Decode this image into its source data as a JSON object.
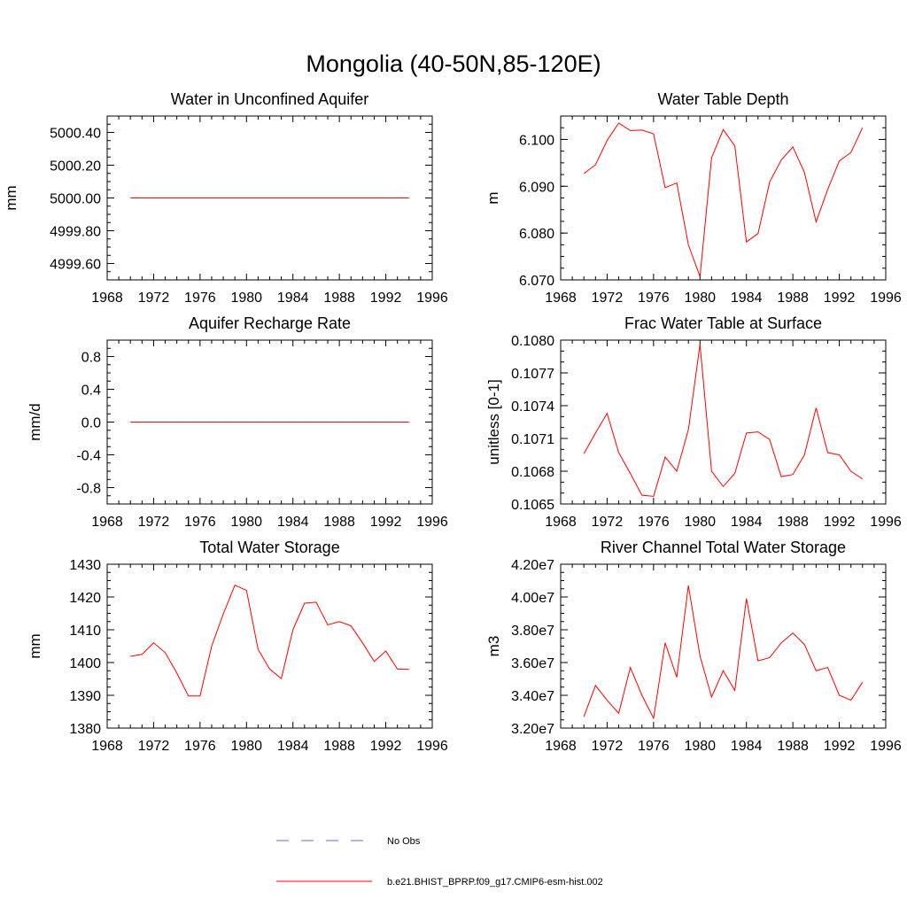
{
  "figure": {
    "title": "Mongolia (40-50N,85-120E)",
    "series_color": "#ff0000",
    "obs_color": "#6a6ad0",
    "legend": [
      {
        "label": "No Obs",
        "style": "dashed",
        "color": "#6a6ad0"
      },
      {
        "label": "b.e21.BHIST_BPRP.f09_g17.CMIP6-esm-hist.002",
        "style": "solid",
        "color": "#ff0000"
      }
    ]
  },
  "chart_data": [
    {
      "type": "line",
      "title": "Water in Unconfined Aquifer",
      "xlabel": "",
      "ylabel": "mm",
      "xlim": [
        1968,
        1996
      ],
      "xticks": [
        1968,
        1972,
        1976,
        1980,
        1984,
        1988,
        1992,
        1996
      ],
      "ylim": [
        4999.5,
        5000.5
      ],
      "yticks": [
        4999.6,
        4999.8,
        5000.0,
        5000.2,
        5000.4
      ],
      "ytick_labels": [
        "4999.60",
        "4999.80",
        "5000.00",
        "5000.20",
        "5000.40"
      ],
      "yminor": 0.05,
      "x": [
        1970,
        1971,
        1972,
        1973,
        1974,
        1975,
        1976,
        1977,
        1978,
        1979,
        1980,
        1981,
        1982,
        1983,
        1984,
        1985,
        1986,
        1987,
        1988,
        1989,
        1990,
        1991,
        1992,
        1993,
        1994
      ],
      "series": [
        {
          "name": "b.e21.BHIST_BPRP.f09_g17.CMIP6-esm-hist.002",
          "values": [
            5000,
            5000,
            5000,
            5000,
            5000,
            5000,
            5000,
            5000,
            5000,
            5000,
            5000,
            5000,
            5000,
            5000,
            5000,
            5000,
            5000,
            5000,
            5000,
            5000,
            5000,
            5000,
            5000,
            5000,
            5000
          ]
        }
      ]
    },
    {
      "type": "line",
      "title": "Water Table Depth",
      "xlabel": "",
      "ylabel": "m",
      "xlim": [
        1968,
        1996
      ],
      "xticks": [
        1968,
        1972,
        1976,
        1980,
        1984,
        1988,
        1992,
        1996
      ],
      "ylim": [
        6.07,
        6.105
      ],
      "yticks": [
        6.07,
        6.08,
        6.09,
        6.1
      ],
      "ytick_labels": [
        "6.070",
        "6.080",
        "6.090",
        "6.100"
      ],
      "yminor": 0.0025,
      "x": [
        1970,
        1971,
        1972,
        1973,
        1974,
        1975,
        1976,
        1977,
        1978,
        1979,
        1980,
        1981,
        1982,
        1983,
        1984,
        1985,
        1986,
        1987,
        1988,
        1989,
        1990,
        1991,
        1992,
        1993,
        1994
      ],
      "series": [
        {
          "name": "b.e21.BHIST_BPRP.f09_g17.CMIP6-esm-hist.002",
          "values": [
            6.0927,
            6.0946,
            6.0998,
            6.1035,
            6.1019,
            6.102,
            6.1012,
            6.0897,
            6.0907,
            6.0775,
            6.0707,
            6.0961,
            6.1021,
            6.0986,
            6.0781,
            6.0799,
            6.0909,
            6.0956,
            6.0984,
            6.0929,
            6.0824,
            6.0893,
            6.0954,
            6.0972,
            6.1025
          ]
        }
      ]
    },
    {
      "type": "line",
      "title": "Aquifer Recharge Rate",
      "xlabel": "",
      "ylabel": "mm/d",
      "xlim": [
        1968,
        1996
      ],
      "xticks": [
        1968,
        1972,
        1976,
        1980,
        1984,
        1988,
        1992,
        1996
      ],
      "ylim": [
        -1.0,
        1.0
      ],
      "yticks": [
        -0.8,
        -0.4,
        0.0,
        0.4,
        0.8
      ],
      "ytick_labels": [
        "-0.8",
        "-0.4",
        "0.0",
        "0.4",
        "0.8"
      ],
      "yminor": 0.1,
      "x": [
        1970,
        1971,
        1972,
        1973,
        1974,
        1975,
        1976,
        1977,
        1978,
        1979,
        1980,
        1981,
        1982,
        1983,
        1984,
        1985,
        1986,
        1987,
        1988,
        1989,
        1990,
        1991,
        1992,
        1993,
        1994
      ],
      "series": [
        {
          "name": "b.e21.BHIST_BPRP.f09_g17.CMIP6-esm-hist.002",
          "values": [
            0,
            0,
            0,
            0,
            0,
            0,
            0,
            0,
            0,
            0,
            0,
            0,
            0,
            0,
            0,
            0,
            0,
            0,
            0,
            0,
            0,
            0,
            0,
            0,
            0
          ]
        }
      ]
    },
    {
      "type": "line",
      "title": "Frac Water Table at Surface",
      "xlabel": "",
      "ylabel": "unitless [0-1]",
      "xlim": [
        1968,
        1996
      ],
      "xticks": [
        1968,
        1972,
        1976,
        1980,
        1984,
        1988,
        1992,
        1996
      ],
      "ylim": [
        0.1065,
        0.108
      ],
      "yticks": [
        0.1065,
        0.1068,
        0.1071,
        0.1074,
        0.1077,
        0.108
      ],
      "ytick_labels": [
        "0.1065",
        "0.1068",
        "0.1071",
        "0.1074",
        "0.1077",
        "0.1080"
      ],
      "yminor": 0.0001,
      "x": [
        1970,
        1971,
        1972,
        1973,
        1974,
        1975,
        1976,
        1977,
        1978,
        1979,
        1980,
        1981,
        1982,
        1983,
        1984,
        1985,
        1986,
        1987,
        1988,
        1989,
        1990,
        1991,
        1992,
        1993,
        1994
      ],
      "series": [
        {
          "name": "b.e21.BHIST_BPRP.f09_g17.CMIP6-esm-hist.002",
          "values": [
            0.10696,
            0.10715,
            0.10733,
            0.10697,
            0.10678,
            0.10658,
            0.10657,
            0.10693,
            0.1068,
            0.10718,
            0.10796,
            0.1068,
            0.10666,
            0.10678,
            0.10715,
            0.10716,
            0.10709,
            0.10675,
            0.10677,
            0.10695,
            0.10738,
            0.10697,
            0.10695,
            0.1068,
            0.10673
          ]
        }
      ]
    },
    {
      "type": "line",
      "title": "Total Water Storage",
      "xlabel": "",
      "ylabel": "mm",
      "xlim": [
        1968,
        1996
      ],
      "xticks": [
        1968,
        1972,
        1976,
        1980,
        1984,
        1988,
        1992,
        1996
      ],
      "ylim": [
        1380,
        1430
      ],
      "yticks": [
        1380,
        1390,
        1400,
        1410,
        1420,
        1430
      ],
      "ytick_labels": [
        "1380",
        "1390",
        "1400",
        "1410",
        "1420",
        "1430"
      ],
      "yminor": 2.5,
      "x": [
        1970,
        1971,
        1972,
        1973,
        1974,
        1975,
        1976,
        1977,
        1978,
        1979,
        1980,
        1981,
        1982,
        1983,
        1984,
        1985,
        1986,
        1987,
        1988,
        1989,
        1990,
        1991,
        1992,
        1993,
        1994
      ],
      "series": [
        {
          "name": "b.e21.BHIST_BPRP.f09_g17.CMIP6-esm-hist.002",
          "values": [
            1401.9,
            1402.5,
            1406.0,
            1403.0,
            1396.8,
            1389.8,
            1389.8,
            1405.0,
            1414.8,
            1423.6,
            1422.0,
            1404.0,
            1398.0,
            1395.1,
            1410.0,
            1418.1,
            1418.4,
            1411.5,
            1412.5,
            1411.2,
            1406.0,
            1400.3,
            1403.5,
            1398.0,
            1397.9
          ]
        }
      ]
    },
    {
      "type": "line",
      "title": "River Channel Total Water Storage",
      "xlabel": "",
      "ylabel": "m3",
      "xlim": [
        1968,
        1996
      ],
      "xticks": [
        1968,
        1972,
        1976,
        1980,
        1984,
        1988,
        1992,
        1996
      ],
      "ylim": [
        32000000,
        42000000
      ],
      "yticks": [
        32000000,
        34000000,
        36000000,
        38000000,
        40000000,
        42000000
      ],
      "ytick_labels": [
        "3.20e7",
        "3.40e7",
        "3.60e7",
        "3.80e7",
        "4.00e7",
        "4.20e7"
      ],
      "yminor": 500000,
      "x": [
        1970,
        1971,
        1972,
        1973,
        1974,
        1975,
        1976,
        1977,
        1978,
        1979,
        1980,
        1981,
        1982,
        1983,
        1984,
        1985,
        1986,
        1987,
        1988,
        1989,
        1990,
        1991,
        1992,
        1993,
        1994
      ],
      "series": [
        {
          "name": "b.e21.BHIST_BPRP.f09_g17.CMIP6-esm-hist.002",
          "values": [
            32700000,
            34600000,
            33700000,
            32900000,
            35700000,
            34000000,
            32600000,
            37200000,
            35100000,
            40700000,
            36400000,
            33900000,
            35500000,
            34300000,
            39900000,
            36100000,
            36300000,
            37200000,
            37800000,
            37100000,
            35500000,
            35700000,
            34000000,
            33700000,
            34800000
          ]
        }
      ]
    }
  ]
}
